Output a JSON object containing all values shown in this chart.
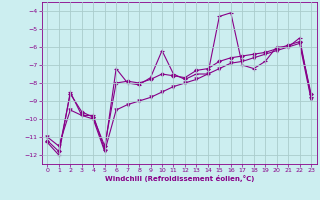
{
  "xlabel": "Windchill (Refroidissement éolien,°C)",
  "xlim": [
    -0.5,
    23.5
  ],
  "ylim": [
    -12.5,
    -3.5
  ],
  "yticks": [
    -12,
    -11,
    -10,
    -9,
    -8,
    -7,
    -6,
    -5,
    -4
  ],
  "xticks": [
    0,
    1,
    2,
    3,
    4,
    5,
    6,
    7,
    8,
    9,
    10,
    11,
    12,
    13,
    14,
    15,
    16,
    17,
    18,
    19,
    20,
    21,
    22,
    23
  ],
  "bg_color": "#cceef0",
  "line_color": "#880088",
  "grid_color": "#aacccc",
  "series1_x": [
    0,
    1,
    2,
    3,
    4,
    5,
    6,
    7,
    8,
    9,
    10,
    11,
    12,
    13,
    14,
    15,
    16,
    17,
    18,
    19,
    20,
    21,
    22,
    23
  ],
  "series1_y": [
    -11.3,
    -12.0,
    -8.5,
    -9.8,
    -9.8,
    -11.7,
    -7.2,
    -8.0,
    -8.1,
    -7.7,
    -6.2,
    -7.5,
    -7.8,
    -7.5,
    -7.5,
    -4.3,
    -4.1,
    -7.0,
    -7.2,
    -6.8,
    -6.0,
    -6.0,
    -5.5,
    -8.8
  ],
  "series2_x": [
    0,
    1,
    2,
    3,
    4,
    5,
    6,
    7,
    8,
    9,
    10,
    11,
    12,
    13,
    14,
    15,
    16,
    17,
    18,
    19,
    20,
    21,
    22,
    23
  ],
  "series2_y": [
    -11.2,
    -11.8,
    -8.6,
    -9.6,
    -9.9,
    -11.5,
    -8.0,
    -7.9,
    -8.0,
    -7.8,
    -7.5,
    -7.6,
    -7.7,
    -7.3,
    -7.2,
    -6.8,
    -6.6,
    -6.5,
    -6.4,
    -6.3,
    -6.1,
    -5.9,
    -5.7,
    -8.6
  ],
  "series3_x": [
    0,
    1,
    2,
    3,
    4,
    5,
    6,
    7,
    8,
    9,
    10,
    11,
    12,
    13,
    14,
    15,
    16,
    17,
    18,
    19,
    20,
    21,
    22,
    23
  ],
  "series3_y": [
    -11.0,
    -11.5,
    -9.5,
    -9.8,
    -10.0,
    -11.8,
    -9.5,
    -9.2,
    -9.0,
    -8.8,
    -8.5,
    -8.2,
    -8.0,
    -7.8,
    -7.5,
    -7.2,
    -6.9,
    -6.8,
    -6.6,
    -6.4,
    -6.2,
    -6.0,
    -5.8,
    -8.9
  ]
}
